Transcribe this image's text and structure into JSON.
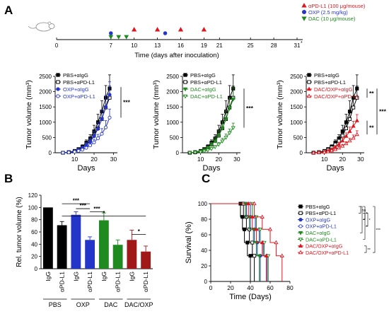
{
  "panel_labels": {
    "a": "A",
    "b": "B",
    "c": "C"
  },
  "colors": {
    "black": "#000000",
    "blue": "#2436c7",
    "green": "#1f8a1f",
    "red": "#e0141c",
    "gray": "#888888"
  },
  "timeline": {
    "xlabel": "Time (days after inoculation)",
    "ticks": [
      "0",
      "7",
      "10",
      "13",
      "16",
      "19",
      "21",
      "25",
      "28",
      "31"
    ],
    "tick_days": [
      0,
      7,
      10,
      13,
      16,
      19,
      21,
      25,
      28,
      31
    ],
    "superscript_mark": "*",
    "legend": [
      {
        "label": "αPD-L1 (100 μg/mouse)",
        "color": "#e0141c",
        "marker": "triangle-up"
      },
      {
        "label": "OXP (2.5 mg/kg)",
        "color": "#2436c7",
        "marker": "circle"
      },
      {
        "label": "DAC (10 μg/mouse)",
        "color": "#1f8a1f",
        "marker": "triangle-down"
      }
    ],
    "dosing": {
      "apd_l1_days": [
        10,
        13,
        16,
        19
      ],
      "oxp_days": [
        7,
        14
      ],
      "dac_days": [
        7,
        8,
        9
      ]
    }
  },
  "chart_data": [
    {
      "type": "line",
      "ylabel": "Tumor volume (mm³)",
      "xlabel": "Days",
      "yticks": [
        "0",
        "500",
        "1000",
        "1500",
        "2000",
        "2500"
      ],
      "xticks": [
        "10",
        "20",
        "30"
      ],
      "xlim": [
        0,
        32
      ],
      "ylim": [
        0,
        2500
      ],
      "x": [
        4,
        7,
        10,
        12,
        14,
        16,
        18,
        20,
        22,
        24,
        26,
        28
      ],
      "series": [
        {
          "name": "PBS+αIgG",
          "color": "#000000",
          "marker": "square",
          "fill": true,
          "values": [
            0,
            20,
            60,
            120,
            200,
            330,
            470,
            700,
            1000,
            1350,
            1800,
            2100
          ],
          "errors": [
            0,
            10,
            20,
            30,
            60,
            90,
            120,
            200,
            260,
            350,
            400,
            450
          ]
        },
        {
          "name": "PBS+αPD-L1",
          "color": "#000000",
          "marker": "square",
          "fill": false,
          "values": [
            0,
            15,
            50,
            100,
            170,
            270,
            390,
            560,
            800,
            1100,
            1480,
            1800
          ],
          "errors": [
            0,
            10,
            20,
            30,
            50,
            80,
            110,
            170,
            220,
            300,
            350,
            380
          ]
        },
        {
          "name": "OXP+αIgG",
          "color": "#2436c7",
          "marker": "circle",
          "fill": true,
          "values": [
            0,
            15,
            45,
            95,
            160,
            250,
            370,
            540,
            780,
            1100,
            1500,
            1900
          ],
          "errors": [
            0,
            10,
            20,
            30,
            50,
            80,
            110,
            160,
            220,
            300,
            380,
            420
          ]
        },
        {
          "name": "OXP+αPD-L1",
          "color": "#2436c7",
          "marker": "circle",
          "fill": false,
          "values": [
            0,
            10,
            30,
            60,
            100,
            160,
            240,
            340,
            470,
            620,
            830,
            1150
          ],
          "errors": [
            0,
            5,
            10,
            20,
            30,
            50,
            70,
            100,
            130,
            170,
            220,
            280
          ]
        }
      ],
      "bracket_labels": [
        "***"
      ]
    },
    {
      "type": "line",
      "ylabel": "Tumor volume (mm³)",
      "xlabel": "Days",
      "yticks": [
        "0",
        "500",
        "1000",
        "1500",
        "2000",
        "2500"
      ],
      "xticks": [
        "10",
        "20",
        "30"
      ],
      "xlim": [
        0,
        32
      ],
      "ylim": [
        0,
        2500
      ],
      "x": [
        4,
        7,
        10,
        12,
        14,
        16,
        18,
        20,
        22,
        24,
        26,
        28
      ],
      "series": [
        {
          "name": "PBS+αIgG",
          "color": "#000000",
          "marker": "square",
          "fill": true,
          "values": [
            0,
            20,
            60,
            120,
            200,
            330,
            470,
            700,
            1000,
            1350,
            1800,
            2100
          ],
          "errors": [
            0,
            10,
            20,
            30,
            60,
            90,
            120,
            200,
            260,
            350,
            400,
            450
          ]
        },
        {
          "name": "PBS+αPD-L1",
          "color": "#000000",
          "marker": "square",
          "fill": false,
          "values": [
            0,
            15,
            50,
            100,
            170,
            270,
            390,
            560,
            800,
            1100,
            1480,
            1800
          ],
          "errors": [
            0,
            10,
            20,
            30,
            50,
            80,
            110,
            170,
            220,
            300,
            350,
            380
          ]
        },
        {
          "name": "DAC+αIgG",
          "color": "#1f8a1f",
          "marker": "triangle-down",
          "fill": true,
          "values": [
            0,
            15,
            45,
            95,
            165,
            260,
            380,
            560,
            800,
            1100,
            1450,
            1750
          ],
          "errors": [
            0,
            10,
            20,
            30,
            50,
            80,
            110,
            160,
            220,
            280,
            340,
            380
          ]
        },
        {
          "name": "DAC+αPD-L1",
          "color": "#1f8a1f",
          "marker": "triangle-down",
          "fill": false,
          "values": [
            0,
            10,
            25,
            50,
            85,
            130,
            190,
            270,
            380,
            500,
            650,
            820
          ],
          "errors": [
            0,
            5,
            10,
            20,
            30,
            40,
            50,
            70,
            90,
            110,
            130,
            150
          ]
        }
      ],
      "bracket_labels": [
        "***"
      ]
    },
    {
      "type": "line",
      "ylabel": "Tumor volume (mm³)",
      "xlabel": "Days",
      "yticks": [
        "0",
        "500",
        "1000",
        "1500",
        "2000",
        "2500"
      ],
      "xticks": [
        "10",
        "20",
        "30"
      ],
      "xlim": [
        0,
        32
      ],
      "ylim": [
        0,
        2500
      ],
      "x": [
        4,
        7,
        10,
        12,
        14,
        16,
        18,
        20,
        22,
        24,
        26,
        28
      ],
      "series": [
        {
          "name": "PBS+αIgG",
          "color": "#000000",
          "marker": "square",
          "fill": true,
          "values": [
            0,
            20,
            60,
            120,
            200,
            330,
            470,
            700,
            1000,
            1350,
            1800,
            2100
          ],
          "errors": [
            0,
            10,
            20,
            30,
            60,
            90,
            120,
            200,
            260,
            350,
            400,
            450
          ]
        },
        {
          "name": "PBS+αPD-L1",
          "color": "#000000",
          "marker": "square",
          "fill": false,
          "values": [
            0,
            15,
            50,
            100,
            170,
            270,
            390,
            560,
            800,
            1100,
            1480,
            1800
          ],
          "errors": [
            0,
            10,
            20,
            30,
            50,
            80,
            110,
            170,
            220,
            300,
            350,
            380
          ]
        },
        {
          "name": "DAC/OXP+αIgG",
          "color": "#e0141c",
          "marker": "triangle-up",
          "fill": true,
          "values": [
            0,
            10,
            30,
            65,
            110,
            180,
            270,
            390,
            540,
            700,
            870,
            1050
          ],
          "errors": [
            0,
            5,
            10,
            20,
            30,
            50,
            70,
            90,
            110,
            140,
            160,
            200
          ]
        },
        {
          "name": "DAC/OXP+αPD-L1",
          "color": "#e0141c",
          "marker": "triangle-up",
          "fill": false,
          "values": [
            0,
            8,
            20,
            40,
            70,
            110,
            160,
            220,
            300,
            390,
            480,
            600
          ],
          "errors": [
            0,
            5,
            10,
            15,
            20,
            30,
            40,
            50,
            60,
            80,
            100,
            120
          ]
        }
      ],
      "bracket_labels": [
        "**",
        "**",
        "***"
      ]
    },
    {
      "type": "bar",
      "ylabel": "Rel. tumor volume (%)",
      "yticks": [
        "0",
        "20",
        "40",
        "60",
        "80",
        "100",
        "120"
      ],
      "ylim": [
        0,
        120
      ],
      "categories": [
        "IgG",
        "αPD-L1",
        "IgG",
        "αPD-L1",
        "IgG",
        "αPD-L1",
        "IgG",
        "αPD-L1"
      ],
      "groups": [
        "PBS",
        "OXP",
        "DAC",
        "DAC/OXP"
      ],
      "values": [
        100,
        71,
        88,
        47,
        79,
        39,
        47,
        28
      ],
      "errors": [
        0,
        6,
        5,
        5,
        12,
        8,
        16,
        9
      ],
      "bar_colors": [
        "#000000",
        "#000000",
        "#2436c7",
        "#2436c7",
        "#1f8a1f",
        "#1f8a1f",
        "#a01818",
        "#a01818"
      ],
      "significance": [
        {
          "label": "***",
          "from": 1,
          "to": 3
        },
        {
          "label": "***",
          "from": 2,
          "to": 3
        },
        {
          "label": "***",
          "from": 3,
          "to": 4
        },
        {
          "label": "*",
          "from": 1,
          "to": 7
        },
        {
          "label": "*",
          "from": 6,
          "to": 7
        }
      ]
    },
    {
      "type": "line",
      "kind": "survival",
      "ylabel": "Survival (%)",
      "xlabel": "Time (Days)",
      "yticks": [
        "0",
        "20",
        "40",
        "60",
        "80",
        "100"
      ],
      "xticks": [
        "0",
        "20",
        "40",
        "60",
        "80"
      ],
      "xlim": [
        0,
        80
      ],
      "ylim": [
        0,
        100
      ],
      "series": [
        {
          "name": "PBS+αIgG",
          "color": "#000000",
          "marker": "square",
          "fill": true,
          "times": [
            30,
            32,
            34,
            37,
            40
          ],
          "values": [
            83,
            67,
            50,
            33,
            0
          ]
        },
        {
          "name": "PBS+αPD-L1",
          "color": "#000000",
          "marker": "square",
          "fill": false,
          "times": [
            33,
            36,
            39,
            42,
            44
          ],
          "values": [
            83,
            67,
            50,
            33,
            0
          ]
        },
        {
          "name": "OXP+αIgG",
          "color": "#2436c7",
          "marker": "circle",
          "fill": true,
          "times": [
            36,
            40,
            44,
            47,
            50
          ],
          "values": [
            83,
            67,
            50,
            33,
            0
          ]
        },
        {
          "name": "OXP+αPD-L1",
          "color": "#2436c7",
          "marker": "circle",
          "fill": false,
          "times": [
            40,
            45,
            49,
            53,
            57
          ],
          "values": [
            83,
            67,
            50,
            33,
            0
          ]
        },
        {
          "name": "DAC+αIgG",
          "color": "#1f8a1f",
          "marker": "triangle-down",
          "fill": true,
          "times": [
            35,
            39,
            43,
            46,
            49
          ],
          "values": [
            83,
            67,
            50,
            33,
            0
          ]
        },
        {
          "name": "DAC+αPD-L1",
          "color": "#1f8a1f",
          "marker": "triangle-down",
          "fill": false,
          "times": [
            42,
            46,
            50,
            54,
            58
          ],
          "values": [
            83,
            67,
            50,
            33,
            0
          ]
        },
        {
          "name": "DAC/OXP+αIgG",
          "color": "#e0141c",
          "marker": "triangle-up",
          "fill": true,
          "times": [
            38,
            42,
            46,
            52,
            56
          ],
          "values": [
            83,
            67,
            50,
            33,
            0
          ]
        },
        {
          "name": "DAC/OXP+αPD-L1",
          "color": "#e0141c",
          "marker": "triangle-up",
          "fill": false,
          "times": [
            44,
            52,
            60,
            66,
            72
          ],
          "values": [
            83,
            67,
            50,
            33,
            0
          ]
        }
      ],
      "bracket_labels": [
        "ns",
        "*",
        "*",
        "*",
        "*",
        "***",
        "**"
      ]
    }
  ]
}
